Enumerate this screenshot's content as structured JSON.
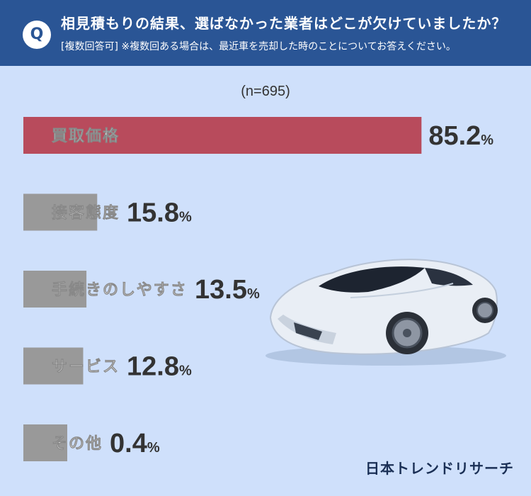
{
  "header": {
    "badge": "Q",
    "question": "相見積もりの結果、選ばなかった業者はどこが欠けていましたか？",
    "note": "[複数回答可] ※複数回ある場合は、最近車を売却した時のことについてお答えください。"
  },
  "sample_label": "(n=695)",
  "logo_text": "日本トレンドリサーチ",
  "colors": {
    "header_bg": "#2a5595",
    "background": "#cfe0fb",
    "highlight_bar": "#b84b5c",
    "default_bar": "#999999"
  },
  "chart_data": {
    "type": "bar",
    "orientation": "horizontal",
    "title": "",
    "xlabel": "",
    "ylabel": "",
    "unit": "%",
    "xlim": [
      0,
      100
    ],
    "grid": false,
    "categories": [
      "買取価格",
      "接客態度",
      "手続きのしやすさ",
      "サービス",
      "その他"
    ],
    "values": [
      85.2,
      15.8,
      13.5,
      12.8,
      0.4
    ],
    "value_labels": [
      "85.2",
      "15.8",
      "13.5",
      "12.8",
      "0.4"
    ],
    "highlight_index": 0
  }
}
